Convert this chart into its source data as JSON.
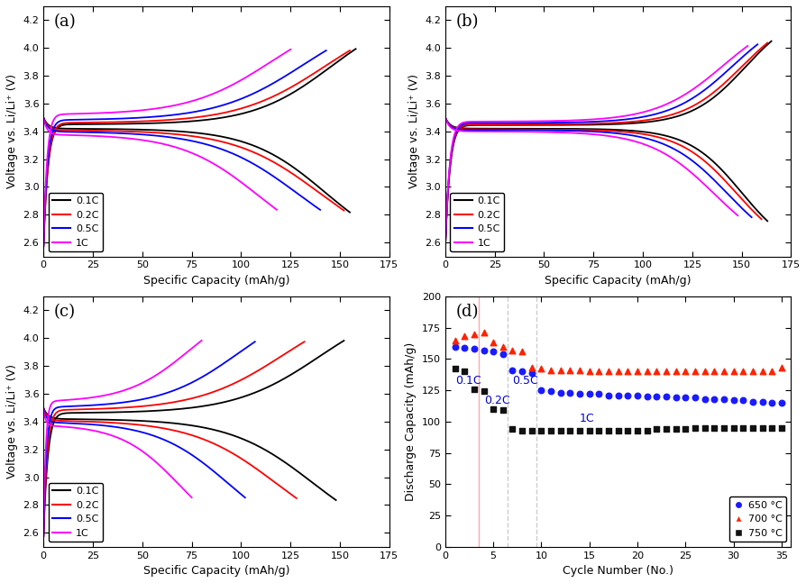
{
  "panel_labels": [
    "(a)",
    "(b)",
    "(c)",
    "(d)"
  ],
  "c_rate_colors": [
    "#000000",
    "#ff0000",
    "#0000ff",
    "#ff00ff"
  ],
  "c_rate_labels": [
    "0.1C",
    "0.2C",
    "0.5C",
    "1C"
  ],
  "voltage_ylim": [
    2.5,
    4.3
  ],
  "voltage_yticks": [
    2.6,
    2.8,
    3.0,
    3.2,
    3.4,
    3.6,
    3.8,
    4.0,
    4.2
  ],
  "capacity_xlim": [
    0,
    175
  ],
  "capacity_xticks": [
    0,
    25,
    50,
    75,
    100,
    125,
    150,
    175
  ],
  "xlabel": "Specific Capacity (mAh/g)",
  "ylabel": "Voltage vs. Li/Li⁺ (V)",
  "panel_a": {
    "discharge_caps": [
      155,
      152,
      140,
      118
    ],
    "charge_caps": [
      158,
      155,
      143,
      125
    ],
    "discharge_plateau": [
      3.42,
      3.41,
      3.4,
      3.38
    ],
    "charge_plateau": [
      3.45,
      3.46,
      3.48,
      3.52
    ],
    "discharge_steep": [
      8.0,
      7.0,
      6.5,
      6.0
    ],
    "charge_steep": [
      8.0,
      7.0,
      6.5,
      6.0
    ]
  },
  "panel_b": {
    "discharge_caps": [
      163,
      160,
      155,
      148
    ],
    "charge_caps": [
      165,
      163,
      158,
      153
    ],
    "discharge_plateau": [
      3.42,
      3.415,
      3.41,
      3.4
    ],
    "charge_plateau": [
      3.445,
      3.45,
      3.46,
      3.47
    ],
    "discharge_steep": [
      12.0,
      11.0,
      10.0,
      9.0
    ],
    "charge_steep": [
      12.0,
      11.0,
      10.0,
      9.0
    ]
  },
  "panel_c": {
    "discharge_caps": [
      148,
      128,
      102,
      75
    ],
    "charge_caps": [
      152,
      132,
      107,
      80
    ],
    "discharge_plateau": [
      3.42,
      3.41,
      3.4,
      3.38
    ],
    "charge_plateau": [
      3.46,
      3.48,
      3.5,
      3.54
    ],
    "discharge_steep": [
      7.0,
      6.0,
      5.5,
      5.0
    ],
    "charge_steep": [
      7.0,
      6.0,
      5.5,
      5.0
    ]
  },
  "panel_d": {
    "650_x": [
      1,
      2,
      3,
      4,
      5,
      6,
      7,
      8,
      9,
      10,
      11,
      12,
      13,
      14,
      15,
      16,
      17,
      18,
      19,
      20,
      21,
      22,
      23,
      24,
      25,
      26,
      27,
      28,
      29,
      30,
      31,
      32,
      33,
      34,
      35
    ],
    "650_y": [
      160,
      159,
      158,
      157,
      156,
      154,
      141,
      140,
      139,
      125,
      124,
      123,
      123,
      122,
      122,
      122,
      121,
      121,
      121,
      121,
      120,
      120,
      120,
      119,
      119,
      119,
      118,
      118,
      118,
      117,
      117,
      116,
      116,
      115,
      115
    ],
    "700_x": [
      1,
      2,
      3,
      4,
      5,
      6,
      7,
      8,
      9,
      10,
      11,
      12,
      13,
      14,
      15,
      16,
      17,
      18,
      19,
      20,
      21,
      22,
      23,
      24,
      25,
      26,
      27,
      28,
      29,
      30,
      31,
      32,
      33,
      34,
      35
    ],
    "700_y": [
      165,
      168,
      170,
      171,
      163,
      160,
      157,
      156,
      143,
      142,
      141,
      141,
      141,
      141,
      140,
      140,
      140,
      140,
      140,
      140,
      140,
      140,
      140,
      140,
      140,
      140,
      140,
      140,
      140,
      140,
      140,
      140,
      140,
      140,
      143
    ],
    "750_x": [
      1,
      2,
      3,
      4,
      5,
      6,
      7,
      8,
      9,
      10,
      11,
      12,
      13,
      14,
      15,
      16,
      17,
      18,
      19,
      20,
      21,
      22,
      23,
      24,
      25,
      26,
      27,
      28,
      29,
      30,
      31,
      32,
      33,
      34,
      35
    ],
    "750_y": [
      142,
      140,
      126,
      124,
      110,
      109,
      94,
      93,
      93,
      93,
      93,
      93,
      93,
      93,
      93,
      93,
      93,
      93,
      93,
      93,
      93,
      94,
      94,
      94,
      94,
      95,
      95,
      95,
      95,
      95,
      95,
      95,
      95,
      95,
      95
    ],
    "vline_x": [
      3.5,
      6.5,
      9.5
    ],
    "vline_colors": [
      "#ffaaaa",
      "#cccccc",
      "#cccccc"
    ],
    "ylim": [
      0,
      200
    ],
    "yticks": [
      0,
      25,
      50,
      75,
      100,
      125,
      150,
      175,
      200
    ],
    "xlim": [
      0,
      36
    ],
    "xticks": [
      0,
      5,
      10,
      15,
      20,
      25,
      30,
      35
    ],
    "xlabel": "Cycle Number (No.)",
    "ylabel": "Discharge Capacity (mAh/g)",
    "ann_01C_x": 1.1,
    "ann_01C_y": 130,
    "ann_02C_x": 4.1,
    "ann_02C_y": 114,
    "ann_05C_x": 7.0,
    "ann_05C_y": 130,
    "ann_1C_x": 14.0,
    "ann_1C_y": 100
  },
  "legend_650_color": "#1a1aff",
  "legend_700_color": "#ff2200",
  "legend_750_color": "#111111"
}
